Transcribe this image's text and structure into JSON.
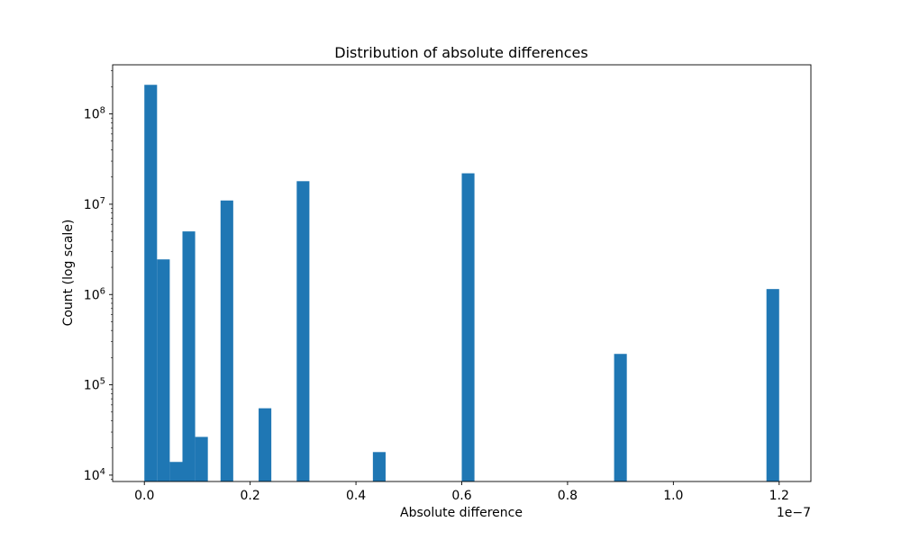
{
  "chart_data": {
    "type": "bar",
    "title": "Distribution of absolute differences",
    "xlabel": "Absolute difference",
    "ylabel": "Count (log scale)",
    "x_scale_label": "1e−7",
    "x_scale_factor": 1e-07,
    "xlim": [
      -0.06,
      1.26
    ],
    "xticks": [
      0.0,
      0.2,
      0.4,
      0.6,
      0.8,
      1.0,
      1.2
    ],
    "xtick_labels": [
      "0.0",
      "0.2",
      "0.4",
      "0.6",
      "0.8",
      "1.0",
      "1.2"
    ],
    "y_scale": "log",
    "ylim": [
      8500,
      350000000
    ],
    "yticks": [
      10000,
      100000,
      1000000,
      10000000,
      100000000
    ],
    "ytick_labels": [
      {
        "base": "10",
        "exp": "4"
      },
      {
        "base": "10",
        "exp": "5"
      },
      {
        "base": "10",
        "exp": "6"
      },
      {
        "base": "10",
        "exp": "7"
      },
      {
        "base": "10",
        "exp": "8"
      }
    ],
    "grid": false,
    "bar_color": "#1f77b4",
    "bins": [
      {
        "x0": 0.0,
        "x1": 0.024,
        "count": 210000000
      },
      {
        "x0": 0.024,
        "x1": 0.048,
        "count": 2450000
      },
      {
        "x0": 0.048,
        "x1": 0.072,
        "count": 14000
      },
      {
        "x0": 0.072,
        "x1": 0.096,
        "count": 5000000
      },
      {
        "x0": 0.096,
        "x1": 0.12,
        "count": 26500
      },
      {
        "x0": 0.144,
        "x1": 0.168,
        "count": 11000000
      },
      {
        "x0": 0.216,
        "x1": 0.24,
        "count": 55000
      },
      {
        "x0": 0.288,
        "x1": 0.312,
        "count": 18000000
      },
      {
        "x0": 0.432,
        "x1": 0.456,
        "count": 18000
      },
      {
        "x0": 0.6,
        "x1": 0.624,
        "count": 22000000
      },
      {
        "x0": 0.888,
        "x1": 0.912,
        "count": 220000
      },
      {
        "x0": 1.176,
        "x1": 1.2,
        "count": 1150000
      }
    ]
  }
}
